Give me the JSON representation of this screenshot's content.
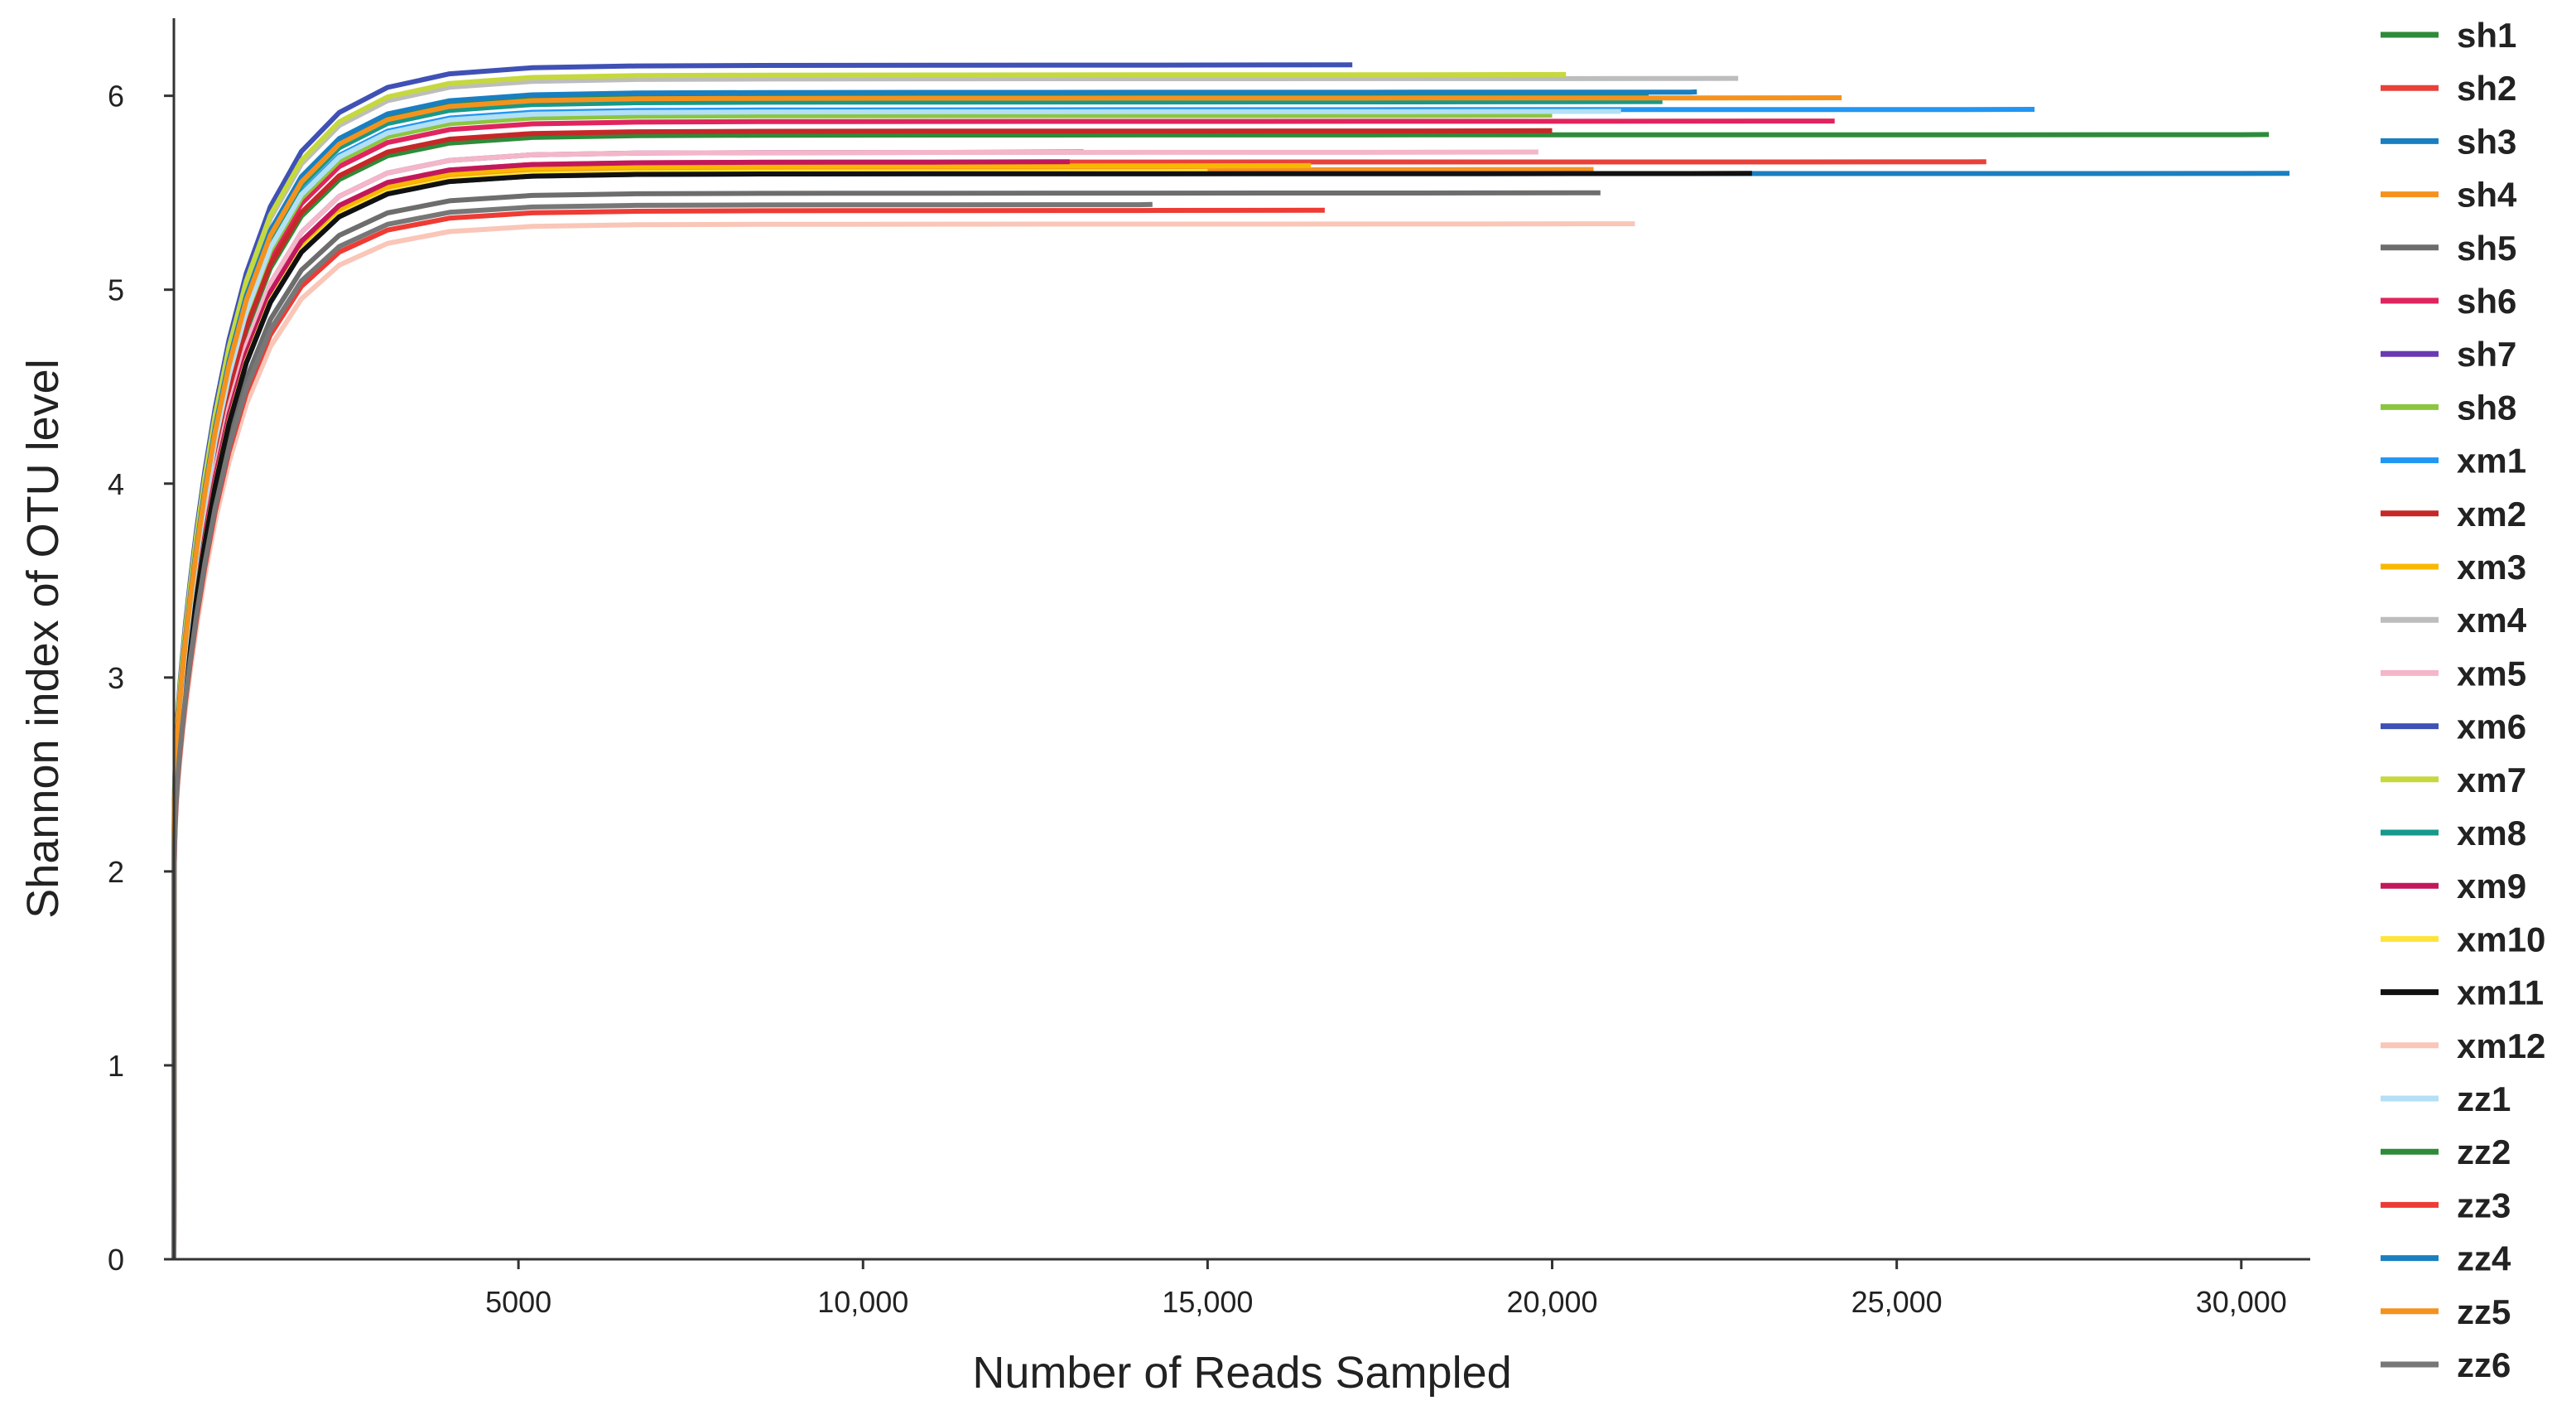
{
  "chart_data": {
    "type": "line",
    "xlabel": "Number of Reads Sampled",
    "ylabel": "Shannon index of OTU level",
    "xlim": [
      0,
      31000
    ],
    "ylim": [
      0,
      6.4
    ],
    "x_ticks": [
      5000,
      10000,
      15000,
      20000,
      25000,
      30000
    ],
    "x_tick_labels": [
      "5000",
      "10,000",
      "15,000",
      "20,000",
      "25,000",
      "30,000"
    ],
    "y_ticks": [
      0,
      1,
      2,
      3,
      4,
      5,
      6
    ],
    "y_tick_labels": [
      "0",
      "1",
      "2",
      "3",
      "4",
      "5",
      "6"
    ],
    "grid": false,
    "legend_position": "right",
    "series": [
      {
        "name": "sh1",
        "color": "#2e8b3a",
        "asymptote": 5.8,
        "max_reads": 30400
      },
      {
        "name": "sh2",
        "color": "#e8413a",
        "asymptote": 5.66,
        "max_reads": 26300
      },
      {
        "name": "sh3",
        "color": "#1a7fc1",
        "asymptote": 5.6,
        "max_reads": 30700
      },
      {
        "name": "sh4",
        "color": "#f5921e",
        "asymptote": 5.62,
        "max_reads": 20600
      },
      {
        "name": "sh5",
        "color": "#6d6d6d",
        "asymptote": 5.5,
        "max_reads": 20700
      },
      {
        "name": "sh6",
        "color": "#e0245e",
        "asymptote": 5.87,
        "max_reads": 24100
      },
      {
        "name": "sh7",
        "color": "#6a3ab2",
        "asymptote": 5.71,
        "max_reads": 13200
      },
      {
        "name": "sh8",
        "color": "#8cc63f",
        "asymptote": 5.9,
        "max_reads": 20000
      },
      {
        "name": "xm1",
        "color": "#2196f3",
        "asymptote": 5.93,
        "max_reads": 27000
      },
      {
        "name": "xm2",
        "color": "#c62828",
        "asymptote": 5.82,
        "max_reads": 20000
      },
      {
        "name": "xm3",
        "color": "#f9b800",
        "asymptote": 5.64,
        "max_reads": 16500
      },
      {
        "name": "xm4",
        "color": "#bdbdbd",
        "asymptote": 6.09,
        "max_reads": 22700
      },
      {
        "name": "xm5",
        "color": "#f4b6c8",
        "asymptote": 5.71,
        "max_reads": 19800
      },
      {
        "name": "xm6",
        "color": "#3f51b5",
        "asymptote": 6.16,
        "max_reads": 17100
      },
      {
        "name": "xm7",
        "color": "#c5d93f",
        "asymptote": 6.11,
        "max_reads": 20200
      },
      {
        "name": "xm8",
        "color": "#16998a",
        "asymptote": 5.97,
        "max_reads": 21600
      },
      {
        "name": "xm9",
        "color": "#c2185b",
        "asymptote": 5.66,
        "max_reads": 13000
      },
      {
        "name": "xm10",
        "color": "#ffe43a",
        "asymptote": 5.61,
        "max_reads": 15000
      },
      {
        "name": "xm11",
        "color": "#111111",
        "asymptote": 5.6,
        "max_reads": 22900
      },
      {
        "name": "xm12",
        "color": "#f9c6b8",
        "asymptote": 5.34,
        "max_reads": 21200
      },
      {
        "name": "zz1",
        "color": "#b3e0f5",
        "asymptote": 5.92,
        "max_reads": 21000
      },
      {
        "name": "zz2",
        "color": "#2e8b3a",
        "asymptote": 6.0,
        "max_reads": 21400
      },
      {
        "name": "zz3",
        "color": "#ee3b34",
        "asymptote": 5.41,
        "max_reads": 16700
      },
      {
        "name": "zz4",
        "color": "#1a7fc1",
        "asymptote": 6.02,
        "max_reads": 22100
      },
      {
        "name": "zz5",
        "color": "#f5921e",
        "asymptote": 5.99,
        "max_reads": 24200
      },
      {
        "name": "zz6",
        "color": "#777777",
        "asymptote": 5.44,
        "max_reads": 14200
      }
    ]
  }
}
